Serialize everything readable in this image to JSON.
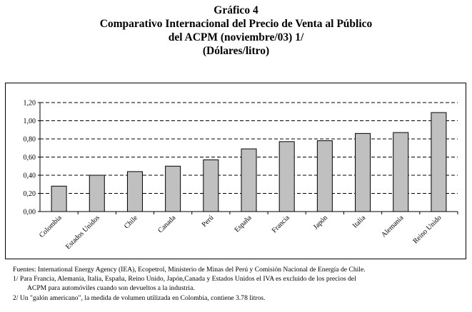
{
  "header": {
    "line1": "Gráfico 4",
    "line2": "Comparativo Internacional del Precio de Venta al Público",
    "line3": "del ACPM (noviembre/03)  1/",
    "line4": "(Dólares/litro)"
  },
  "chart_data": {
    "type": "bar",
    "title": "Comparativo Internacional del Precio de Venta al Público del ACPM (noviembre/03)",
    "ylabel": "Dólares/litro",
    "xlabel": "",
    "categories": [
      "Colombia",
      "Estados Unidos",
      "Chile",
      "Canada",
      "Perú",
      "España",
      "Francia",
      "Japón",
      "Italia",
      "Alemania",
      "Reino Unido"
    ],
    "values": [
      0.28,
      0.4,
      0.44,
      0.5,
      0.57,
      0.69,
      0.77,
      0.78,
      0.86,
      0.87,
      1.09
    ],
    "ylim": [
      0,
      1.2
    ],
    "yticks": [
      "0,00",
      "0,20",
      "0,40",
      "0,60",
      "0,80",
      "1,00",
      "1,20"
    ],
    "gridlines": "dashed",
    "bar_color": "#c0c0c0"
  },
  "footnotes": {
    "sources": "Fuentes: International Energy Agency (IEA), Ecopetrol, Ministerio de Minas del Perú y Comisión Nacional de Energía de Chile.",
    "note1_line1": "1/ Para Francia, Alemania, Italia, España, Reino Unido, Japón,Canada y Estados Unidos el IVA es excluido de los precios del",
    "note1_line2": "ACPM para automóviles cuando son devueltos a la industria.",
    "note2": "2/ Un \"galón americano\", la medida de volumen utilizada en Colombia, contiene 3.78 litros."
  }
}
